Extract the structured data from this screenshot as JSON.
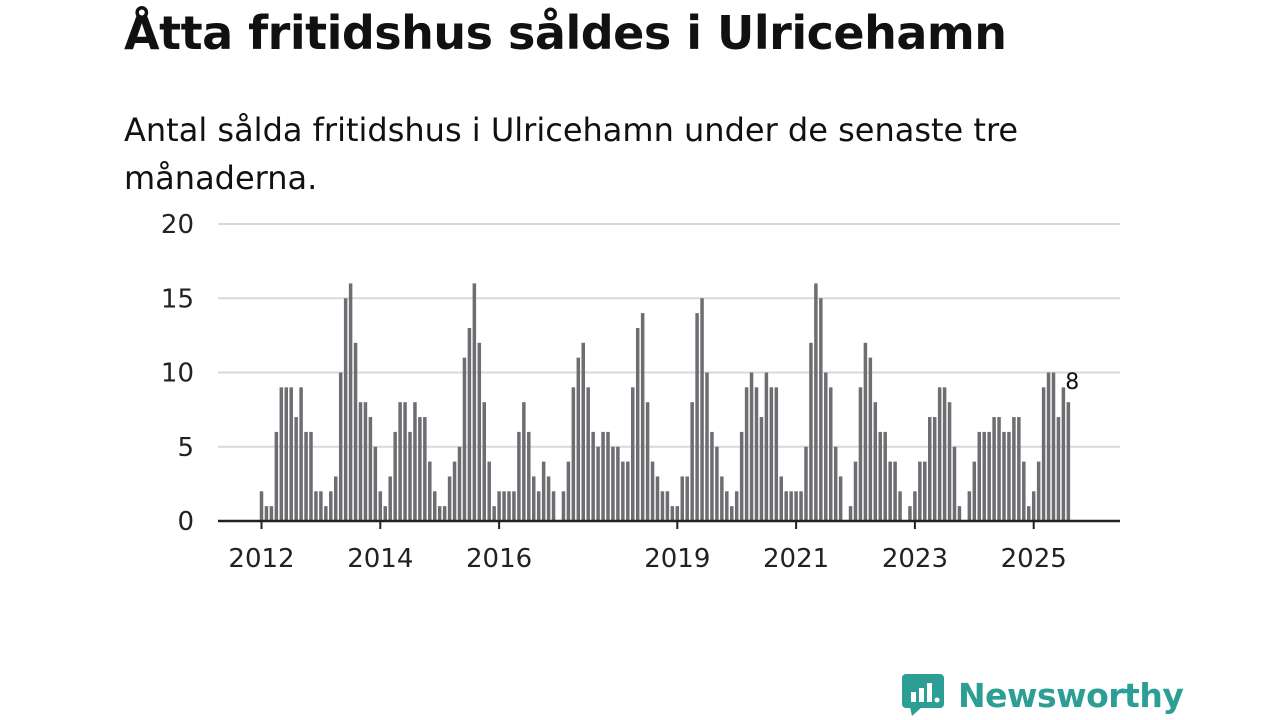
{
  "colors": {
    "bar": "#6e6d72",
    "highlight": "#1d9a96",
    "grid": "#d9d9d9",
    "axis": "#222222",
    "brand": "#2c9e95"
  },
  "brand": {
    "name": "Newsworthy",
    "icon": "newsworthy-logo-icon"
  },
  "chart_data": {
    "type": "bar",
    "title": "Åtta fritidshus såldes i Ulricehamn",
    "subtitle": "Antal sålda fritidshus i Ulricehamn under de senaste tre månaderna.",
    "xlabel": "",
    "ylabel": "",
    "ylim": [
      0,
      20
    ],
    "yticks": [
      0,
      5,
      10,
      15,
      20
    ],
    "grid": true,
    "x_axis": {
      "type": "time",
      "start": "2012-01",
      "end": "2025-09",
      "unit": "month"
    },
    "xticks": [
      {
        "label": "2012",
        "date": "2012-01"
      },
      {
        "label": "2014",
        "date": "2014-01"
      },
      {
        "label": "2016",
        "date": "2016-01"
      },
      {
        "label": "2019",
        "date": "2019-01"
      },
      {
        "label": "2021",
        "date": "2021-01"
      },
      {
        "label": "2023",
        "date": "2023-01"
      },
      {
        "label": "2025",
        "date": "2025-01"
      }
    ],
    "series": [
      {
        "values": [
          2,
          1,
          1,
          6,
          9,
          9,
          9,
          7,
          9,
          6,
          6,
          2,
          2,
          1,
          2,
          3,
          10,
          15,
          16,
          12,
          8,
          8,
          7,
          5,
          2,
          1,
          3,
          6,
          8,
          8,
          6,
          8,
          7,
          7,
          4,
          2,
          1,
          1,
          3,
          4,
          5,
          11,
          13,
          16,
          12,
          8,
          4,
          1,
          2,
          2,
          2,
          2,
          6,
          8,
          6,
          3,
          2,
          4,
          3,
          2,
          0,
          2,
          4,
          9,
          11,
          12,
          9,
          6,
          5,
          6,
          6,
          5,
          5,
          4,
          4,
          9,
          13,
          14,
          8,
          4,
          3,
          2,
          2,
          1,
          1,
          3,
          3,
          8,
          14,
          15,
          10,
          6,
          5,
          3,
          2,
          1,
          2,
          6,
          9,
          10,
          9,
          7,
          10,
          9,
          9,
          3,
          2,
          2,
          2,
          2,
          5,
          12,
          16,
          15,
          10,
          9,
          5,
          3,
          0,
          1,
          4,
          9,
          12,
          11,
          8,
          6,
          6,
          4,
          4,
          2,
          0,
          1,
          2,
          4,
          4,
          7,
          7,
          9,
          9,
          8,
          5,
          1,
          0,
          2,
          4,
          6,
          6,
          6,
          7,
          7,
          6,
          6,
          7,
          7,
          4,
          1,
          2,
          4,
          9,
          10,
          10,
          7,
          9,
          8
        ]
      }
    ],
    "highlight": {
      "date": "2025-09",
      "value": 8,
      "label": "8"
    }
  }
}
